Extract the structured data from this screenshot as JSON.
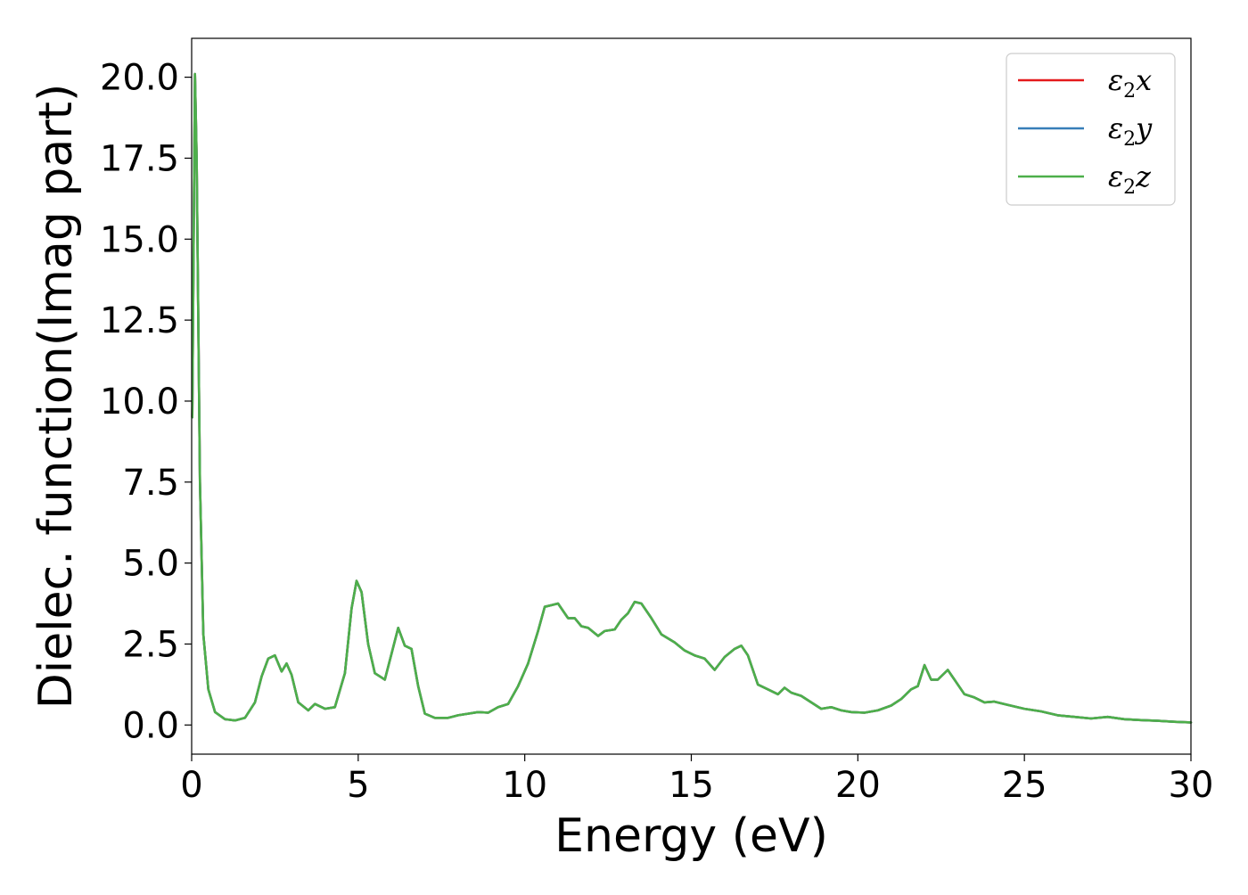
{
  "chart_data": {
    "type": "line",
    "xlabel": "Energy (eV)",
    "ylabel": "Dielec. function(Imag part)",
    "xlim": [
      0,
      30
    ],
    "ylim": [
      -0.9,
      21.2
    ],
    "x_ticks": [
      0,
      5,
      10,
      15,
      20,
      25,
      30
    ],
    "x_tick_labels": [
      "0",
      "5",
      "10",
      "15",
      "20",
      "25",
      "30"
    ],
    "y_ticks": [
      0,
      2.5,
      5,
      7.5,
      10,
      12.5,
      15,
      17.5,
      20
    ],
    "y_tick_labels": [
      "0.0",
      "2.5",
      "5.0",
      "7.5",
      "10.0",
      "12.5",
      "15.0",
      "17.5",
      "20.0"
    ],
    "grid": false,
    "legend_position": "top-right",
    "series": [
      {
        "name": "ε2x",
        "label_main": "ε",
        "label_sub": "2",
        "label_tail": "x",
        "color": "#e41a1c"
      },
      {
        "name": "ε2y",
        "label_main": "ε",
        "label_sub": "2",
        "label_tail": "y",
        "color": "#377eb8"
      },
      {
        "name": "ε2z",
        "label_main": "ε",
        "label_sub": "2",
        "label_tail": "z",
        "color": "#4daf4a"
      }
    ],
    "x": [
      0.02,
      0.1,
      0.15,
      0.25,
      0.35,
      0.5,
      0.7,
      1.0,
      1.3,
      1.6,
      1.9,
      2.1,
      2.3,
      2.5,
      2.7,
      2.85,
      3.0,
      3.2,
      3.5,
      3.7,
      4.0,
      4.3,
      4.6,
      4.8,
      4.95,
      5.1,
      5.3,
      5.5,
      5.8,
      6.0,
      6.2,
      6.4,
      6.6,
      6.8,
      7.0,
      7.3,
      7.7,
      8.0,
      8.3,
      8.6,
      8.9,
      9.2,
      9.5,
      9.8,
      10.1,
      10.4,
      10.6,
      10.8,
      11.0,
      11.3,
      11.5,
      11.7,
      11.9,
      12.2,
      12.4,
      12.7,
      12.9,
      13.1,
      13.3,
      13.5,
      13.8,
      14.1,
      14.5,
      14.8,
      15.1,
      15.4,
      15.7,
      16.0,
      16.3,
      16.5,
      16.7,
      17.0,
      17.3,
      17.6,
      17.8,
      18.0,
      18.3,
      18.6,
      18.9,
      19.2,
      19.5,
      19.8,
      20.2,
      20.6,
      21.0,
      21.3,
      21.6,
      21.8,
      22.0,
      22.2,
      22.4,
      22.7,
      22.9,
      23.2,
      23.5,
      23.8,
      24.1,
      24.5,
      25.0,
      25.5,
      26.0,
      26.5,
      27.0,
      27.5,
      28.0,
      28.5,
      29.0,
      29.5,
      30.0
    ],
    "y": [
      9.5,
      20.1,
      17.5,
      7.5,
      2.8,
      1.1,
      0.4,
      0.18,
      0.14,
      0.22,
      0.7,
      1.5,
      2.05,
      2.15,
      1.65,
      1.9,
      1.55,
      0.7,
      0.45,
      0.65,
      0.5,
      0.55,
      1.6,
      3.6,
      4.45,
      4.1,
      2.5,
      1.6,
      1.4,
      2.2,
      3.0,
      2.45,
      2.35,
      1.2,
      0.35,
      0.22,
      0.22,
      0.3,
      0.35,
      0.4,
      0.38,
      0.55,
      0.65,
      1.2,
      1.9,
      2.9,
      3.65,
      3.7,
      3.75,
      3.3,
      3.3,
      3.05,
      3.0,
      2.75,
      2.9,
      2.95,
      3.25,
      3.45,
      3.8,
      3.75,
      3.3,
      2.8,
      2.55,
      2.3,
      2.15,
      2.05,
      1.7,
      2.1,
      2.35,
      2.45,
      2.15,
      1.25,
      1.1,
      0.95,
      1.15,
      1.0,
      0.9,
      0.7,
      0.5,
      0.55,
      0.45,
      0.4,
      0.38,
      0.45,
      0.6,
      0.8,
      1.1,
      1.2,
      1.85,
      1.4,
      1.4,
      1.7,
      1.4,
      0.95,
      0.85,
      0.7,
      0.72,
      0.62,
      0.5,
      0.42,
      0.3,
      0.25,
      0.2,
      0.25,
      0.18,
      0.15,
      0.13,
      0.1,
      0.08
    ]
  }
}
